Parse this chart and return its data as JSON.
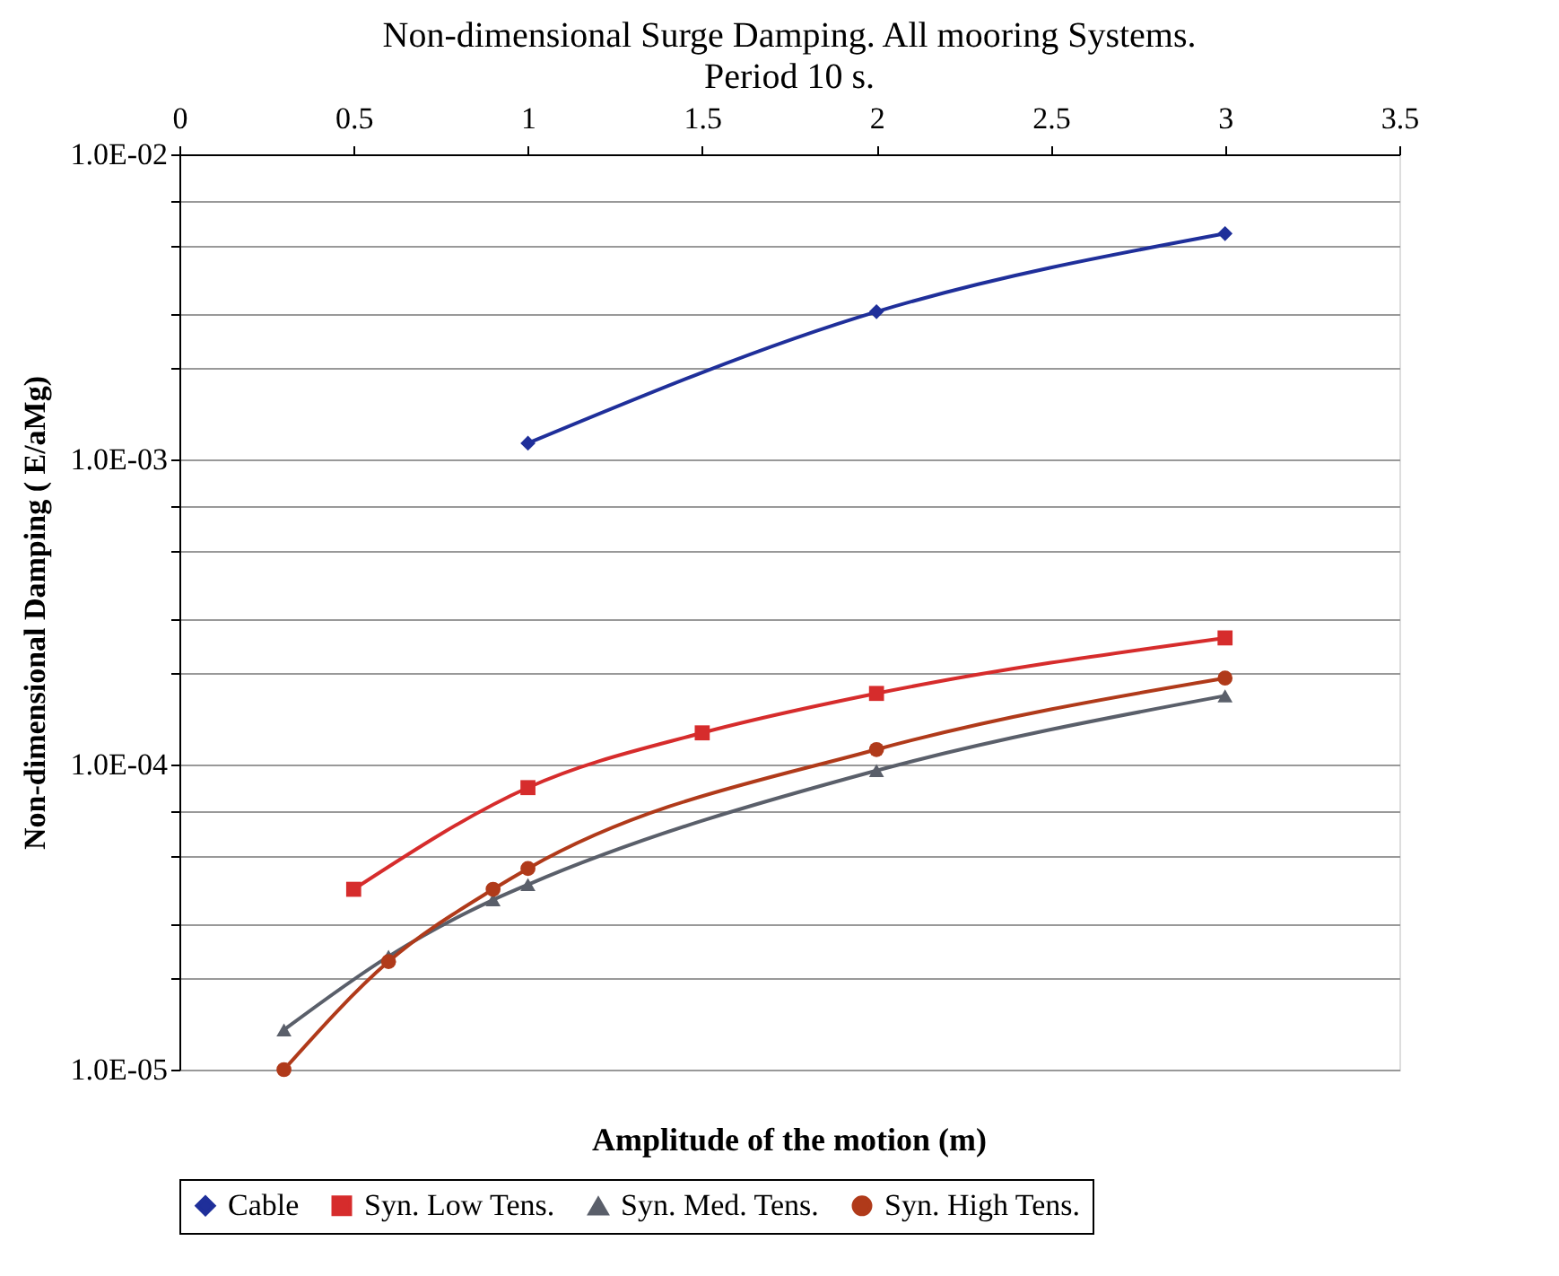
{
  "chart_data": {
    "type": "line",
    "title": "Non-dimensional Surge Damping. All mooring Systems.",
    "subtitle": "Period 10 s.",
    "xlabel": "Amplitude of the motion (m)",
    "ylabel": "Non-dimensional Damping ( E/aMg)",
    "log": "y",
    "grid": "y",
    "legend": "bottom",
    "xlim": [
      0,
      3.5
    ],
    "xticks": [
      0,
      0.5,
      1,
      1.5,
      2,
      2.5,
      3,
      3.5
    ],
    "ylim": [
      1e-05,
      0.01
    ],
    "yticks": [
      {
        "value": 1e-05,
        "label": "1.0E-05"
      },
      {
        "value": 2e-05,
        "label": null
      },
      {
        "value": 3e-05,
        "label": null
      },
      {
        "value": 5e-05,
        "label": null
      },
      {
        "value": 7e-05,
        "label": null
      },
      {
        "value": 0.0001,
        "label": "1.0E-04"
      },
      {
        "value": 0.0002,
        "label": null
      },
      {
        "value": 0.0003,
        "label": null
      },
      {
        "value": 0.0005,
        "label": null
      },
      {
        "value": 0.0007,
        "label": null
      },
      {
        "value": 0.001,
        "label": "1.0E-03"
      },
      {
        "value": 0.002,
        "label": null
      },
      {
        "value": 0.003,
        "label": null
      },
      {
        "value": 0.005,
        "label": null
      },
      {
        "value": 0.007,
        "label": null
      },
      {
        "value": 0.01,
        "label": "1.0E-02"
      }
    ],
    "series": [
      {
        "name": "Cable",
        "color": "#1f2f9a",
        "marker": "diamond",
        "x": [
          1,
          2,
          3
        ],
        "values": [
          0.00113,
          0.00305,
          0.0055
        ]
      },
      {
        "name": "Syn. Low Tens.",
        "color": "#d62c2c",
        "marker": "square",
        "x": [
          0.5,
          1,
          1.5,
          2,
          3
        ],
        "values": [
          3.9e-05,
          8.4e-05,
          0.000127,
          0.000171,
          0.00026
        ]
      },
      {
        "name": "Syn. Med. Tens.",
        "color": "#5a5f6a",
        "marker": "triangle",
        "x": [
          0.3,
          0.6,
          0.9,
          1,
          2,
          3
        ],
        "values": [
          1.35e-05,
          2.35e-05,
          3.6e-05,
          4.04e-05,
          9.55e-05,
          0.000168
        ]
      },
      {
        "name": "Syn. High Tens.",
        "color": "#b03a1a",
        "marker": "circle",
        "x": [
          0.3,
          0.6,
          0.9,
          1,
          2,
          3
        ],
        "values": [
          1e-05,
          2.26e-05,
          3.9e-05,
          4.56e-05,
          0.000112,
          0.000192
        ]
      }
    ]
  }
}
